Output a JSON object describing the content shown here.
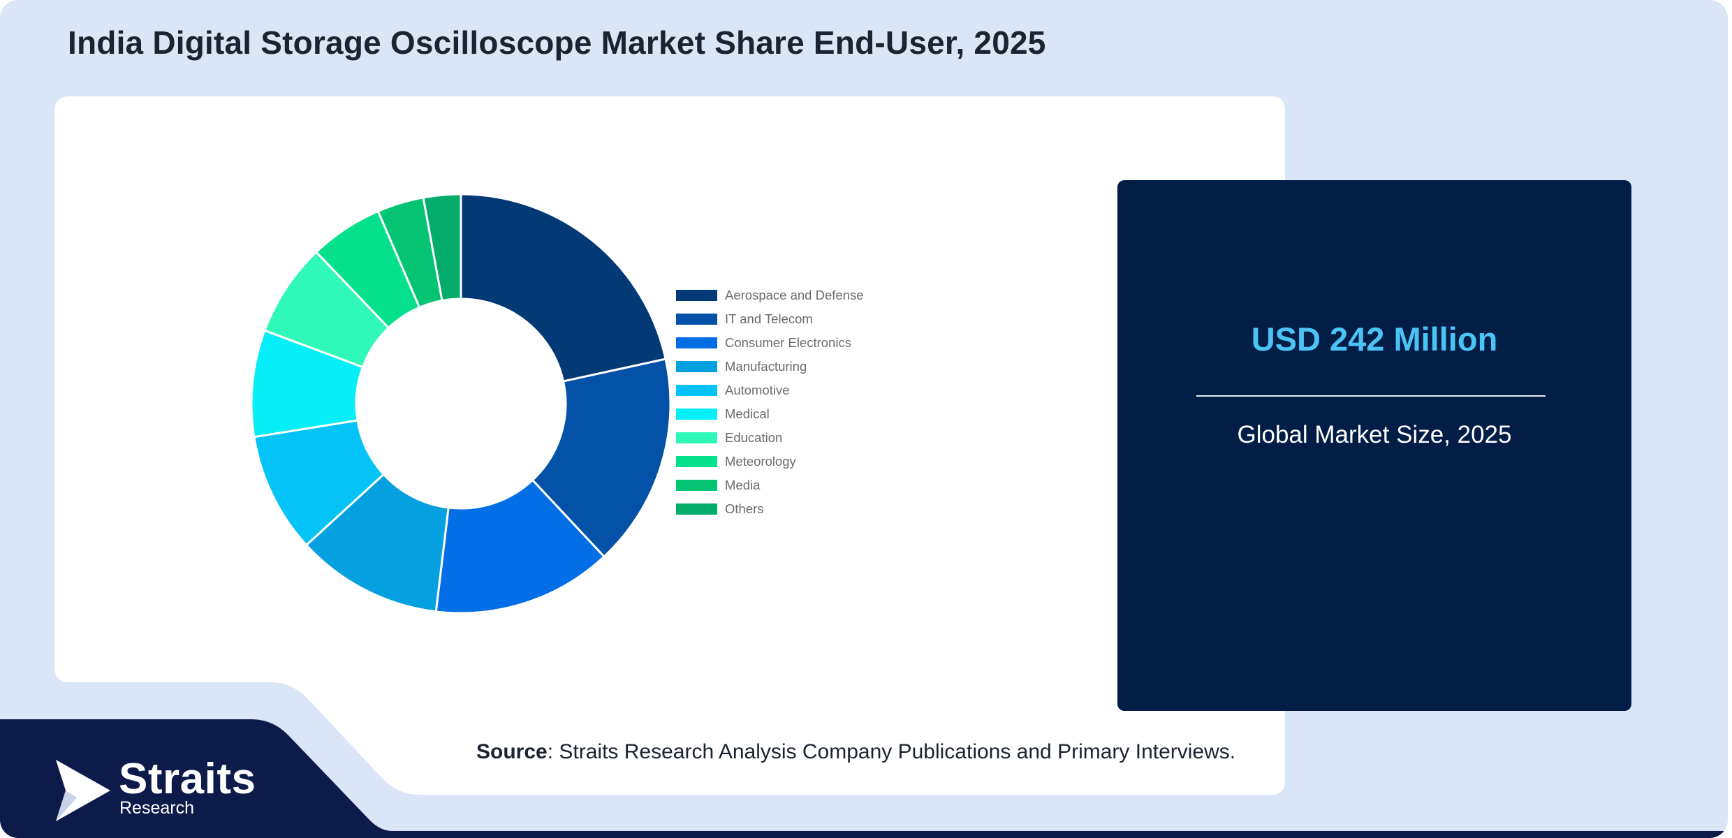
{
  "title": "India Digital Storage Oscilloscope Market Share End-User, 2025",
  "chart_data": {
    "type": "pie",
    "variant": "donut",
    "labels": [
      "Aerospace and Defense",
      "IT and Telecom",
      "Consumer Electronics",
      "Manufacturing",
      "Automotive",
      "Medical",
      "Education",
      "Meteorology",
      "Media",
      "Others"
    ],
    "values": [
      21.0,
      16.0,
      13.5,
      11.0,
      9.0,
      8.0,
      7.0,
      5.5,
      3.5,
      2.8
    ],
    "colors": [
      "#033a76",
      "#0452a8",
      "#046ee6",
      "#04a0e0",
      "#04c3f6",
      "#06eef8",
      "#30f8b8",
      "#04e08c",
      "#04c474",
      "#04ac6c"
    ],
    "legend_position": "right"
  },
  "stat": {
    "value": "USD 242 Million",
    "label": "Global Market Size, 2025"
  },
  "source": {
    "prefix": "Source",
    "text": ": Straits Research Analysis Company Publications and Primary Interviews."
  },
  "brand": {
    "name": "Straits",
    "sub": "Research"
  }
}
